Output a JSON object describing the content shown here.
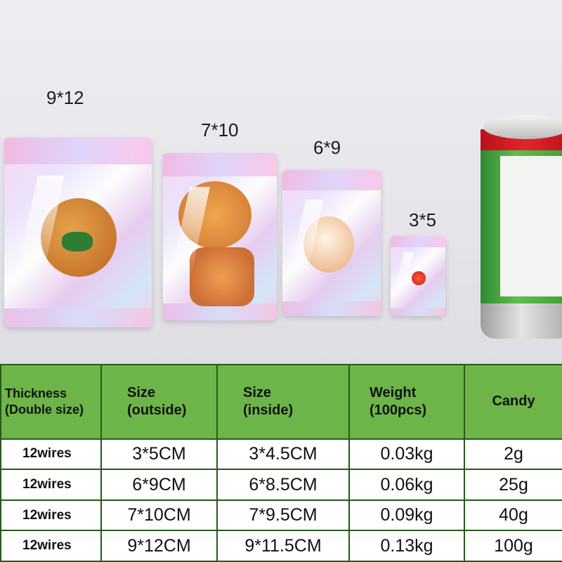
{
  "photo": {
    "labels": {
      "bag_9x12": "9*12",
      "bag_7x10": "7*10",
      "bag_6x9": "6*9",
      "bag_3x5": "3*5"
    }
  },
  "table": {
    "headers": {
      "thickness_line1": "Thickness",
      "thickness_line2": "(Double size)",
      "size_outside_line1": "Size",
      "size_outside_line2": "(outside)",
      "size_inside_line1": "Size",
      "size_inside_line2": "(inside)",
      "weight_line1": "Weight",
      "weight_line2": "(100pcs)",
      "candy": "Candy"
    },
    "rows": [
      {
        "thickness": "12wires",
        "outside": "3*5CM",
        "inside": "3*4.5CM",
        "weight": "0.03kg",
        "candy": "2g"
      },
      {
        "thickness": "12wires",
        "outside": "6*9CM",
        "inside": "6*8.5CM",
        "weight": "0.06kg",
        "candy": "25g"
      },
      {
        "thickness": "12wires",
        "outside": "7*10CM",
        "inside": "7*9.5CM",
        "weight": "0.09kg",
        "candy": "40g"
      },
      {
        "thickness": "12wires",
        "outside": "9*12CM",
        "inside": "9*11.5CM",
        "weight": "0.13kg",
        "candy": "100g"
      }
    ]
  },
  "colors": {
    "header_green": "#6db548",
    "border_green": "#245a1a",
    "can_green": "#4fae3f",
    "can_red": "#e3252c"
  }
}
